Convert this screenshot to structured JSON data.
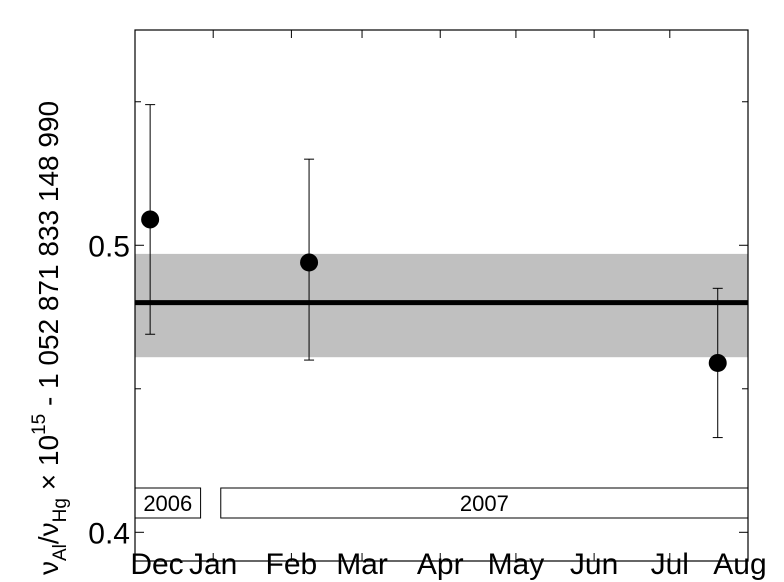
{
  "chart_data": {
    "type": "scatter",
    "title": "",
    "xlabel": "",
    "ylabel": {
      "nu": "ν",
      "sub_al": "Al",
      "slash": "/",
      "sub_hg": "Hg",
      "times": " × 10",
      "exp": "15",
      "offset": " - 1 052 871 833 148 990"
    },
    "x_ticks": [
      "Dec",
      "Jan",
      "Feb",
      "Mar",
      "Apr",
      "May",
      "Jun",
      "Jul",
      "Aug"
    ],
    "y_tick_labels": [
      "0.4",
      "0.5"
    ],
    "y_major_ticks": [
      0.4,
      0.5
    ],
    "y_minor_ticks": [
      0.45,
      0.55
    ],
    "ylim": [
      0.39,
      0.575
    ],
    "year_boxes": [
      {
        "label": "2006",
        "start": "2006-12-01",
        "end": "2006-12-27"
      },
      {
        "label": "2007",
        "start": "2007-01-04",
        "end": "2007-08-01"
      }
    ],
    "xlim": [
      "2006-12-01",
      "2007-08-01"
    ],
    "mean": {
      "value": 0.48,
      "band": [
        0.461,
        0.497
      ]
    },
    "series": [
      {
        "points": [
          {
            "x": "2006-12-07",
            "y": 0.509,
            "err_low": 0.469,
            "err_high": 0.549
          },
          {
            "x": "2007-02-08",
            "y": 0.494,
            "err_low": 0.46,
            "err_high": 0.53
          },
          {
            "x": "2007-07-20",
            "y": 0.459,
            "err_low": 0.433,
            "err_high": 0.485
          }
        ]
      }
    ],
    "colors": {
      "band": "#c0c0c0",
      "mean_line": "#000000",
      "points": "#000000"
    },
    "grid": false
  }
}
